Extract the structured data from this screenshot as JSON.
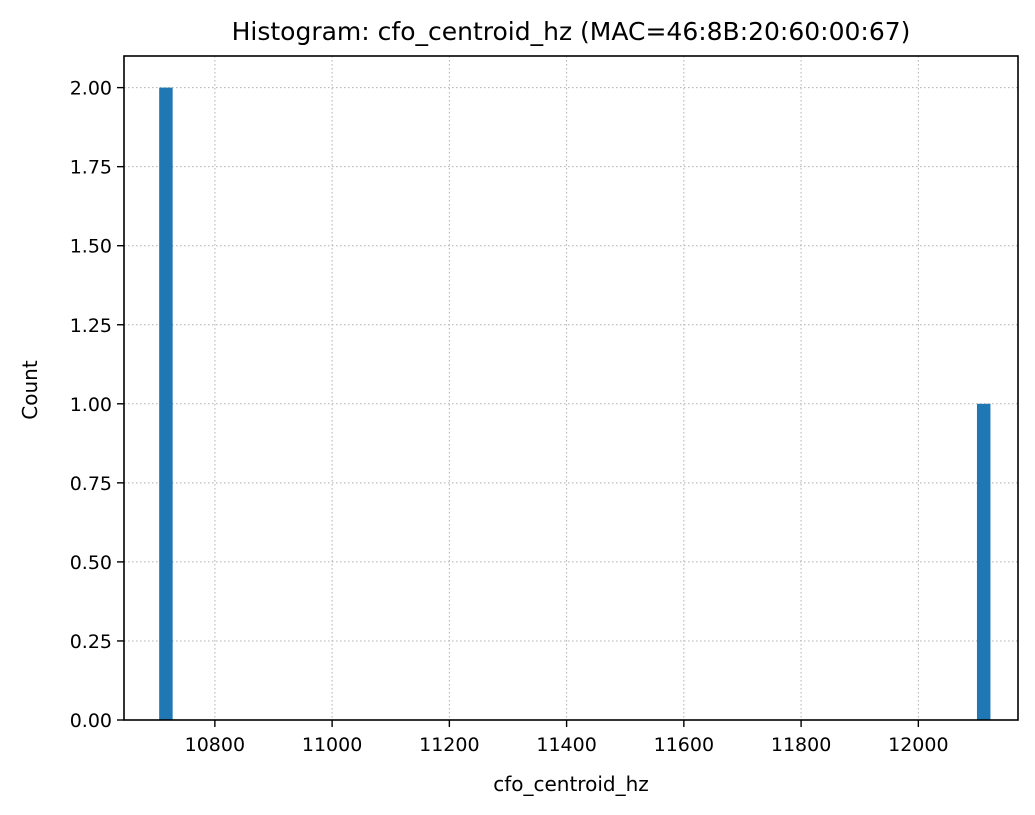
{
  "chart_data": {
    "type": "bar",
    "title": "Histogram: cfo_centroid_hz (MAC=46:8B:20:60:00:67)",
    "xlabel": "cfo_centroid_hz",
    "ylabel": "Count",
    "xlim": [
      10645,
      12170
    ],
    "ylim": [
      0,
      2.1
    ],
    "x_ticks": [
      10800,
      11000,
      11200,
      11400,
      11600,
      11800,
      12000
    ],
    "y_ticks": [
      0.0,
      0.25,
      0.5,
      0.75,
      1.0,
      1.25,
      1.5,
      1.75,
      2.0
    ],
    "y_tick_labels": [
      "0.00",
      "0.25",
      "0.50",
      "0.75",
      "1.00",
      "1.25",
      "1.50",
      "1.75",
      "2.00"
    ],
    "grid": true,
    "bar_color": "#1f77b4",
    "bins": [
      {
        "x0": 10705,
        "x1": 10728,
        "count": 2
      },
      {
        "x0": 12100,
        "x1": 12123,
        "count": 1
      }
    ]
  }
}
